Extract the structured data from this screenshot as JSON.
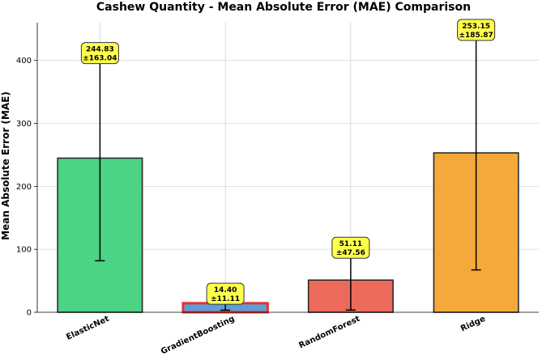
{
  "chart_data": {
    "type": "bar",
    "title": "Cashew Quantity - Mean Absolute Error (MAE) Comparison",
    "xlabel": "",
    "ylabel": "Mean Absolute Error (MAE)",
    "ylim": [
      0,
      460
    ],
    "yticks": [
      0,
      100,
      200,
      300,
      400
    ],
    "grid": true,
    "categories": [
      "ElasticNet",
      "GradientBoosting",
      "RandomForest",
      "Ridge"
    ],
    "values": [
      244.83,
      14.4,
      51.11,
      253.15
    ],
    "errors": [
      163.04,
      11.11,
      47.56,
      185.87
    ],
    "annotations": [
      {
        "line1": "244.83",
        "line2": "±163.04"
      },
      {
        "line1": "14.40",
        "line2": "±11.11"
      },
      {
        "line1": "51.11",
        "line2": "±47.56"
      },
      {
        "line1": "253.15",
        "line2": "±185.87"
      }
    ],
    "colors": [
      "#4cd383",
      "#5b9fd6",
      "#ec6a5c",
      "#f5a93a"
    ],
    "highlight_index": 1,
    "highlight_color": "#e8312e",
    "annotation_fill": "#ffff4d"
  }
}
